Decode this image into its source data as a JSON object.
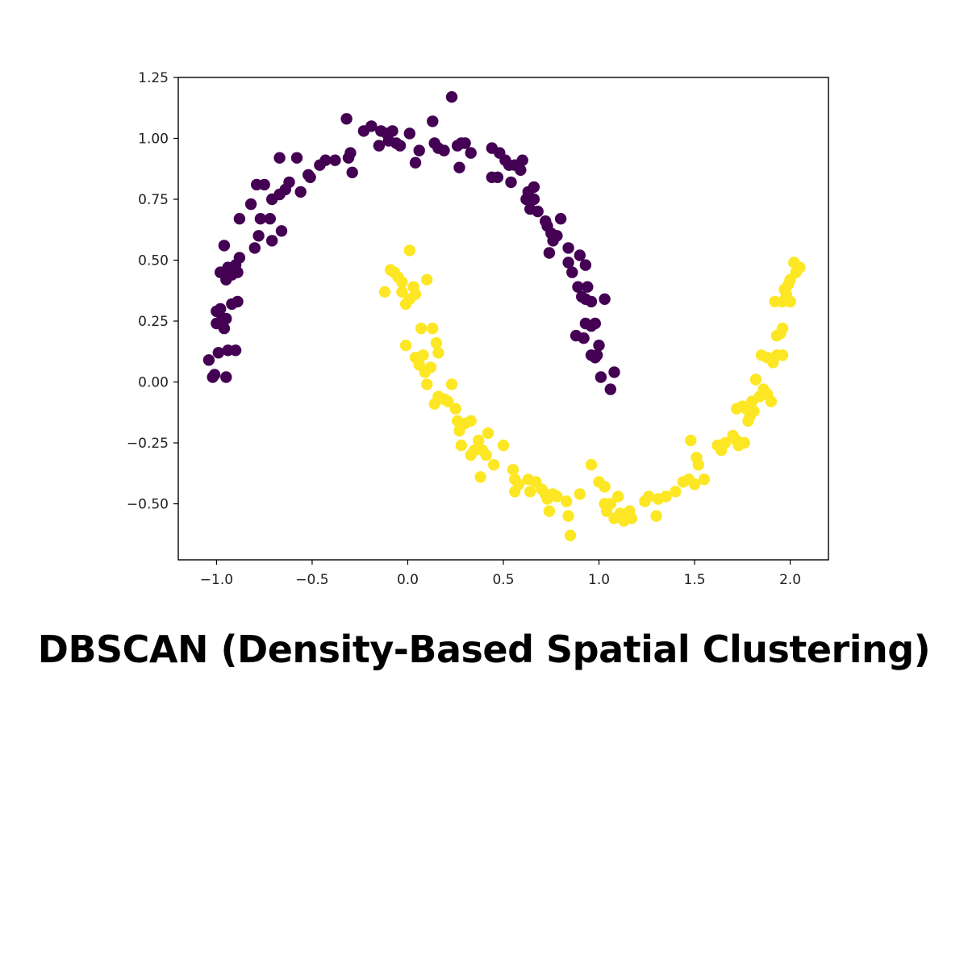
{
  "caption": "DBSCAN (Density-Based Spatial Clustering)",
  "chart_data": {
    "type": "scatter",
    "title": "",
    "xlabel": "",
    "ylabel": "",
    "xlim": [
      -1.2,
      2.2
    ],
    "ylim": [
      -0.73,
      1.25
    ],
    "x_ticks": [
      -1.0,
      -0.5,
      0.0,
      0.5,
      1.0,
      1.5,
      2.0
    ],
    "x_tick_labels": [
      "−1.0",
      "−0.5",
      "0.0",
      "0.5",
      "1.0",
      "1.5",
      "2.0"
    ],
    "y_ticks": [
      1.25,
      1.0,
      0.75,
      0.5,
      0.25,
      0.0,
      -0.25,
      -0.5
    ],
    "y_tick_labels": [
      "1.25",
      "1.00",
      "0.75",
      "0.50",
      "0.25",
      "0.00",
      "−0.25",
      "−0.50"
    ],
    "grid": false,
    "legend": "none",
    "series": [
      {
        "color": "#440154",
        "points": [
          [
            -1.04,
            0.09
          ],
          [
            -1.02,
            0.02
          ],
          [
            -1.01,
            0.03
          ],
          [
            -0.99,
            0.12
          ],
          [
            -0.95,
            0.02
          ],
          [
            -0.94,
            0.13
          ],
          [
            -0.9,
            0.13
          ],
          [
            -1.0,
            0.24
          ],
          [
            -1.0,
            0.29
          ],
          [
            -0.98,
            0.3
          ],
          [
            -0.97,
            0.26
          ],
          [
            -0.96,
            0.22
          ],
          [
            -0.95,
            0.26
          ],
          [
            -0.92,
            0.32
          ],
          [
            -0.89,
            0.33
          ],
          [
            -0.98,
            0.45
          ],
          [
            -0.95,
            0.42
          ],
          [
            -0.94,
            0.47
          ],
          [
            -0.92,
            0.44
          ],
          [
            -0.9,
            0.48
          ],
          [
            -0.88,
            0.51
          ],
          [
            -0.89,
            0.45
          ],
          [
            -0.96,
            0.56
          ],
          [
            -0.88,
            0.67
          ],
          [
            -0.8,
            0.55
          ],
          [
            -0.78,
            0.6
          ],
          [
            -0.77,
            0.67
          ],
          [
            -0.72,
            0.67
          ],
          [
            -0.71,
            0.58
          ],
          [
            -0.66,
            0.62
          ],
          [
            -0.82,
            0.73
          ],
          [
            -0.79,
            0.81
          ],
          [
            -0.75,
            0.81
          ],
          [
            -0.71,
            0.75
          ],
          [
            -0.67,
            0.77
          ],
          [
            -0.64,
            0.79
          ],
          [
            -0.62,
            0.82
          ],
          [
            -0.56,
            0.78
          ],
          [
            -0.67,
            0.92
          ],
          [
            -0.58,
            0.92
          ],
          [
            -0.52,
            0.85
          ],
          [
            -0.51,
            0.84
          ],
          [
            -0.46,
            0.89
          ],
          [
            -0.43,
            0.91
          ],
          [
            -0.38,
            0.91
          ],
          [
            -0.32,
            1.08
          ],
          [
            -0.31,
            0.92
          ],
          [
            -0.3,
            0.94
          ],
          [
            -0.29,
            0.86
          ],
          [
            -0.23,
            1.03
          ],
          [
            -0.19,
            1.05
          ],
          [
            -0.15,
            0.97
          ],
          [
            -0.14,
            1.03
          ],
          [
            -0.11,
            1.02
          ],
          [
            -0.1,
            0.99
          ],
          [
            -0.08,
            1.03
          ],
          [
            -0.06,
            0.98
          ],
          [
            -0.04,
            0.97
          ],
          [
            0.01,
            1.02
          ],
          [
            0.04,
            0.9
          ],
          [
            0.06,
            0.95
          ],
          [
            0.13,
            1.07
          ],
          [
            0.14,
            0.98
          ],
          [
            0.16,
            0.96
          ],
          [
            0.19,
            0.95
          ],
          [
            0.23,
            1.17
          ],
          [
            0.26,
            0.97
          ],
          [
            0.27,
            0.88
          ],
          [
            0.28,
            0.98
          ],
          [
            0.3,
            0.98
          ],
          [
            0.33,
            0.94
          ],
          [
            0.44,
            0.96
          ],
          [
            0.44,
            0.84
          ],
          [
            0.47,
            0.84
          ],
          [
            0.48,
            0.94
          ],
          [
            0.51,
            0.91
          ],
          [
            0.53,
            0.89
          ],
          [
            0.54,
            0.82
          ],
          [
            0.56,
            0.89
          ],
          [
            0.59,
            0.87
          ],
          [
            0.6,
            0.91
          ],
          [
            0.62,
            0.75
          ],
          [
            0.63,
            0.78
          ],
          [
            0.64,
            0.71
          ],
          [
            0.66,
            0.8
          ],
          [
            0.66,
            0.75
          ],
          [
            0.68,
            0.7
          ],
          [
            0.72,
            0.66
          ],
          [
            0.73,
            0.64
          ],
          [
            0.75,
            0.61
          ],
          [
            0.76,
            0.58
          ],
          [
            0.78,
            0.6
          ],
          [
            0.8,
            0.67
          ],
          [
            0.74,
            0.53
          ],
          [
            0.84,
            0.55
          ],
          [
            0.84,
            0.49
          ],
          [
            0.86,
            0.45
          ],
          [
            0.9,
            0.52
          ],
          [
            0.93,
            0.48
          ],
          [
            0.89,
            0.39
          ],
          [
            0.91,
            0.35
          ],
          [
            0.93,
            0.34
          ],
          [
            0.94,
            0.39
          ],
          [
            0.96,
            0.33
          ],
          [
            0.88,
            0.19
          ],
          [
            0.92,
            0.18
          ],
          [
            0.93,
            0.24
          ],
          [
            0.96,
            0.23
          ],
          [
            0.98,
            0.24
          ],
          [
            0.96,
            0.11
          ],
          [
            0.98,
            0.1
          ],
          [
            1.0,
            0.15
          ],
          [
            1.01,
            0.02
          ],
          [
            1.06,
            -0.03
          ],
          [
            1.08,
            0.04
          ],
          [
            0.99,
            0.11
          ],
          [
            1.03,
            0.34
          ]
        ]
      },
      {
        "color": "#fde725",
        "points": [
          [
            -0.12,
            0.37
          ],
          [
            -0.09,
            0.46
          ],
          [
            -0.07,
            0.45
          ],
          [
            -0.05,
            0.43
          ],
          [
            -0.03,
            0.41
          ],
          [
            -0.03,
            0.37
          ],
          [
            -0.01,
            0.32
          ],
          [
            0.01,
            0.54
          ],
          [
            0.01,
            0.34
          ],
          [
            0.03,
            0.39
          ],
          [
            0.04,
            0.36
          ],
          [
            0.1,
            0.42
          ],
          [
            -0.01,
            0.15
          ],
          [
            0.04,
            0.1
          ],
          [
            0.06,
            0.07
          ],
          [
            0.07,
            0.22
          ],
          [
            0.08,
            0.11
          ],
          [
            0.09,
            0.04
          ],
          [
            0.12,
            0.06
          ],
          [
            0.13,
            0.22
          ],
          [
            0.15,
            0.16
          ],
          [
            0.16,
            0.12
          ],
          [
            0.1,
            -0.01
          ],
          [
            0.14,
            -0.09
          ],
          [
            0.16,
            -0.06
          ],
          [
            0.19,
            -0.07
          ],
          [
            0.21,
            -0.08
          ],
          [
            0.23,
            -0.01
          ],
          [
            0.25,
            -0.11
          ],
          [
            0.26,
            -0.16
          ],
          [
            0.27,
            -0.2
          ],
          [
            0.28,
            -0.26
          ],
          [
            0.3,
            -0.17
          ],
          [
            0.33,
            -0.16
          ],
          [
            0.33,
            -0.3
          ],
          [
            0.35,
            -0.28
          ],
          [
            0.37,
            -0.24
          ],
          [
            0.38,
            -0.39
          ],
          [
            0.39,
            -0.28
          ],
          [
            0.41,
            -0.3
          ],
          [
            0.42,
            -0.21
          ],
          [
            0.45,
            -0.34
          ],
          [
            0.5,
            -0.26
          ],
          [
            0.55,
            -0.36
          ],
          [
            0.56,
            -0.4
          ],
          [
            0.56,
            -0.45
          ],
          [
            0.58,
            -0.42
          ],
          [
            0.63,
            -0.4
          ],
          [
            0.64,
            -0.45
          ],
          [
            0.67,
            -0.41
          ],
          [
            0.7,
            -0.44
          ],
          [
            0.72,
            -0.46
          ],
          [
            0.73,
            -0.48
          ],
          [
            0.74,
            -0.53
          ],
          [
            0.76,
            -0.46
          ],
          [
            0.78,
            -0.47
          ],
          [
            0.83,
            -0.49
          ],
          [
            0.84,
            -0.55
          ],
          [
            0.85,
            -0.63
          ],
          [
            0.9,
            -0.46
          ],
          [
            0.96,
            -0.34
          ],
          [
            1.0,
            -0.41
          ],
          [
            1.03,
            -0.43
          ],
          [
            1.03,
            -0.5
          ],
          [
            1.04,
            -0.53
          ],
          [
            1.06,
            -0.5
          ],
          [
            1.08,
            -0.56
          ],
          [
            1.1,
            -0.47
          ],
          [
            1.11,
            -0.54
          ],
          [
            1.13,
            -0.57
          ],
          [
            1.16,
            -0.53
          ],
          [
            1.17,
            -0.56
          ],
          [
            1.24,
            -0.49
          ],
          [
            1.26,
            -0.47
          ],
          [
            1.3,
            -0.55
          ],
          [
            1.31,
            -0.48
          ],
          [
            1.35,
            -0.47
          ],
          [
            1.4,
            -0.45
          ],
          [
            1.44,
            -0.41
          ],
          [
            1.47,
            -0.4
          ],
          [
            1.48,
            -0.24
          ],
          [
            1.5,
            -0.42
          ],
          [
            1.51,
            -0.31
          ],
          [
            1.52,
            -0.34
          ],
          [
            1.55,
            -0.4
          ],
          [
            1.62,
            -0.26
          ],
          [
            1.64,
            -0.28
          ],
          [
            1.66,
            -0.25
          ],
          [
            1.7,
            -0.22
          ],
          [
            1.72,
            -0.24
          ],
          [
            1.73,
            -0.26
          ],
          [
            1.76,
            -0.25
          ],
          [
            1.72,
            -0.11
          ],
          [
            1.75,
            -0.1
          ],
          [
            1.77,
            -0.11
          ],
          [
            1.78,
            -0.16
          ],
          [
            1.79,
            -0.14
          ],
          [
            1.8,
            -0.08
          ],
          [
            1.81,
            -0.12
          ],
          [
            1.82,
            0.01
          ],
          [
            1.84,
            -0.06
          ],
          [
            1.86,
            -0.03
          ],
          [
            1.88,
            -0.05
          ],
          [
            1.9,
            -0.08
          ],
          [
            1.85,
            0.11
          ],
          [
            1.88,
            0.1
          ],
          [
            1.91,
            0.08
          ],
          [
            1.93,
            0.11
          ],
          [
            1.96,
            0.11
          ],
          [
            1.93,
            0.19
          ],
          [
            1.95,
            0.2
          ],
          [
            1.96,
            0.22
          ],
          [
            1.92,
            0.33
          ],
          [
            1.96,
            0.33
          ],
          [
            1.98,
            0.36
          ],
          [
            2.0,
            0.33
          ],
          [
            1.97,
            0.38
          ],
          [
            1.99,
            0.4
          ],
          [
            2.0,
            0.42
          ],
          [
            2.02,
            0.49
          ],
          [
            2.03,
            0.45
          ],
          [
            2.05,
            0.47
          ]
        ]
      }
    ]
  }
}
